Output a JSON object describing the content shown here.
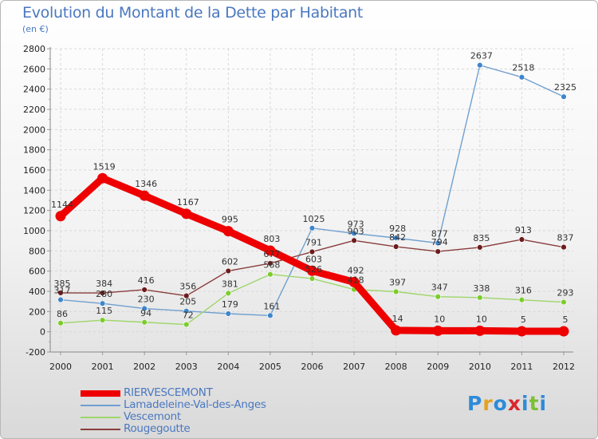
{
  "title": "Evolution du Montant de la Dette par Habitant",
  "unit": "(en €)",
  "logo": {
    "text": "Proxiti",
    "colors": [
      "#2e8bd8",
      "#e8a021",
      "#2e8bd8",
      "#d8282c",
      "#2e8bd8",
      "#7cbf35",
      "#2e8bd8"
    ]
  },
  "chart_data": {
    "type": "line",
    "x": [
      2000,
      2001,
      2002,
      2003,
      2004,
      2005,
      2006,
      2007,
      2008,
      2009,
      2010,
      2011,
      2012
    ],
    "ylim": [
      -200,
      2800
    ],
    "yticks": [
      -200,
      0,
      200,
      400,
      600,
      800,
      1000,
      1200,
      1400,
      1600,
      1800,
      2000,
      2200,
      2400,
      2600,
      2800
    ],
    "legend_position": "bottom-left",
    "series": [
      {
        "name": "RIERVESCEMONT",
        "color": "#ee0000",
        "values": [
          1144,
          1519,
          1346,
          1167,
          995,
          803,
          603,
          492,
          14,
          10,
          10,
          5,
          5
        ],
        "labels": [
          "1144",
          "1519",
          "1346",
          "1167",
          "995",
          "803",
          "603",
          "492",
          "14",
          "10",
          "10",
          "5",
          "5"
        ]
      },
      {
        "name": "Lamadeleine-Val-des-Anges",
        "color": "#6fa0d0",
        "marker": "#3d86cc",
        "values": [
          317,
          280,
          230,
          205,
          179,
          161,
          1025,
          973,
          928,
          877,
          2637,
          2518,
          2325
        ],
        "labels": [
          "317",
          "280",
          "230",
          "205",
          "179",
          "161",
          "1025",
          "973",
          "928",
          "877",
          "2637",
          "2518",
          "2325"
        ]
      },
      {
        "name": "Vescemont",
        "color": "#9ed66a",
        "marker": "#7ccc2c",
        "values": [
          86,
          115,
          94,
          72,
          381,
          568,
          526,
          418,
          397,
          347,
          338,
          316,
          293
        ],
        "labels": [
          "86",
          "115",
          "94",
          "72",
          "381",
          "568",
          "526",
          "418",
          "397",
          "347",
          "338",
          "316",
          "293"
        ]
      },
      {
        "name": "Rougegoutte",
        "color": "#8a3d3d",
        "marker": "#6e1b1b",
        "values": [
          385,
          384,
          416,
          356,
          602,
          677,
          791,
          903,
          842,
          794,
          835,
          913,
          837
        ],
        "labels": [
          "385",
          "384",
          "416",
          "356",
          "602",
          "677",
          "791",
          "903",
          "842",
          "794",
          "835",
          "913",
          "837"
        ]
      }
    ]
  }
}
